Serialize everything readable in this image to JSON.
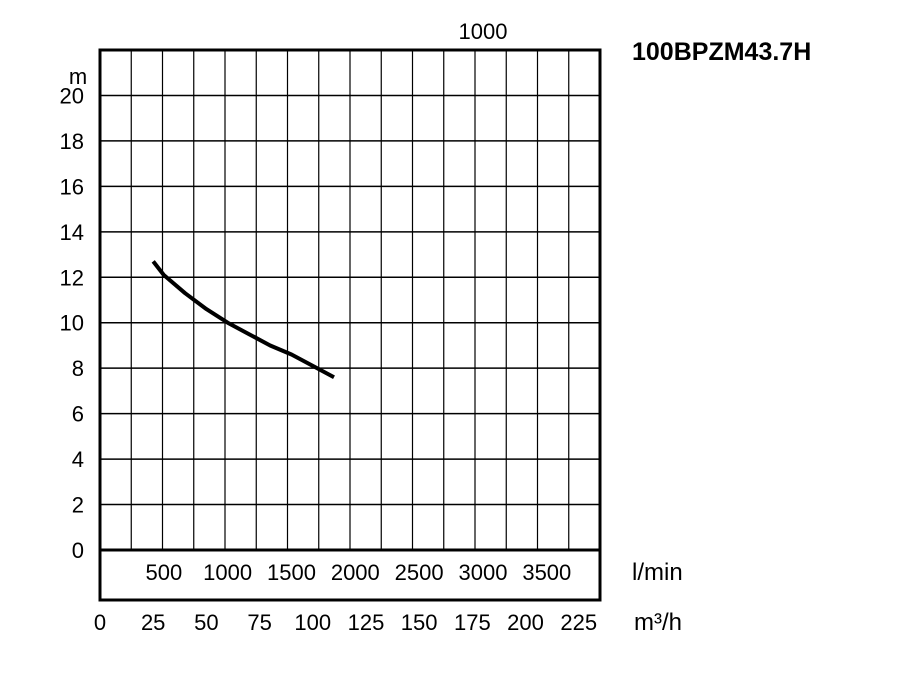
{
  "chart_data": {
    "type": "line",
    "title": "100BPZM43.7H",
    "top_label": "1000",
    "ylabel": "m",
    "ylim": [
      0,
      22
    ],
    "yticks": [
      "0",
      "2",
      "4",
      "6",
      "8",
      "10",
      "12",
      "14",
      "16",
      "18",
      "20"
    ],
    "xlabel_primary": "m³/h",
    "xlim": [
      0,
      235
    ],
    "xticks": [
      "0",
      "25",
      "50",
      "75",
      "100",
      "125",
      "150",
      "175",
      "200",
      "225"
    ],
    "xlabel_secondary": "l/min",
    "xticks_secondary": [
      "500",
      "1000",
      "1500",
      "2000",
      "2500",
      "3000",
      "3500"
    ],
    "grid": true,
    "series": [
      {
        "x": [
          25,
          30,
          40,
          50,
          60,
          70,
          80,
          90,
          100,
          110
        ],
        "y": [
          12.7,
          12.1,
          11.3,
          10.6,
          10.0,
          9.5,
          9.0,
          8.6,
          8.1,
          7.6
        ]
      }
    ],
    "colors": {
      "line": "#000000",
      "grid": "#000000"
    }
  }
}
